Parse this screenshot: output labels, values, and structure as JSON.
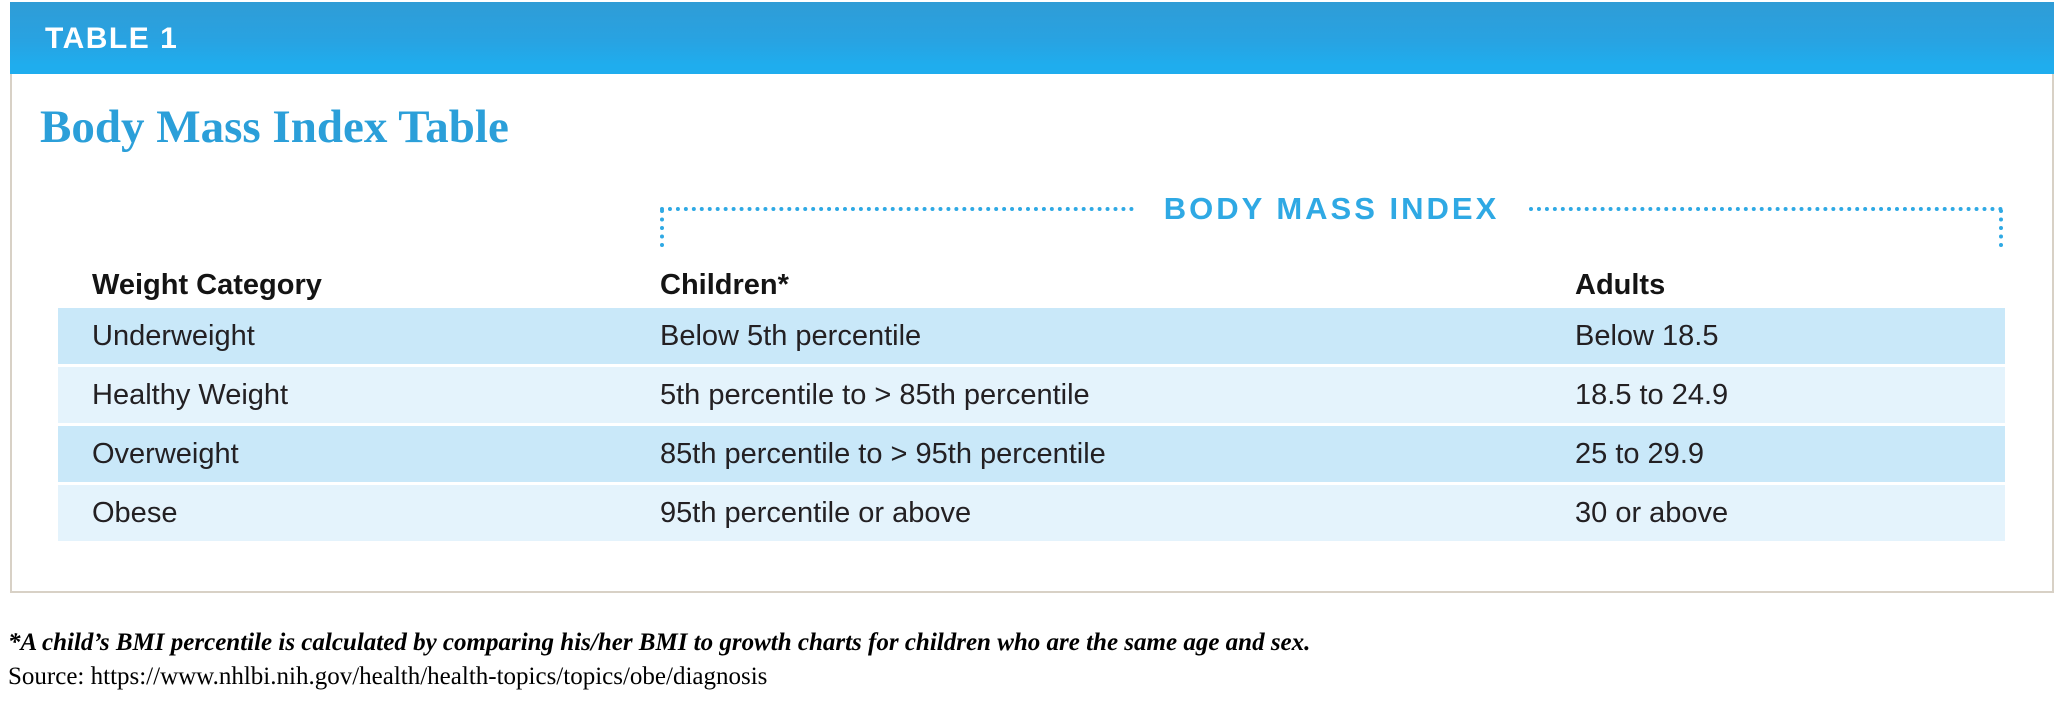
{
  "banner": {
    "label": "TABLE 1"
  },
  "title": "Body Mass Index Table",
  "bracket": {
    "label": "BODY MASS INDEX"
  },
  "table": {
    "columns": [
      "Weight Category",
      "Children*",
      "Adults"
    ],
    "rows": [
      [
        "Underweight",
        "Below 5th percentile",
        "Below 18.5"
      ],
      [
        "Healthy Weight",
        "5th percentile to > 85th percentile",
        "18.5 to 24.9"
      ],
      [
        "Overweight",
        "85th percentile to > 95th percentile",
        "25 to 29.9"
      ],
      [
        "Obese",
        "95th percentile or above",
        "30 or above"
      ]
    ]
  },
  "footnote": "*A child’s BMI percentile is calculated by comparing his/her BMI to growth charts for children who are the same age and sex.",
  "source": "Source: https://www.nhlbi.nih.gov/health/health-topics/topics/obe/diagnosis",
  "chart_data": {
    "type": "table",
    "title": "Body Mass Index Table",
    "group_header": "BODY MASS INDEX",
    "columns": [
      "Weight Category",
      "Children*",
      "Adults"
    ],
    "rows": [
      {
        "weight_category": "Underweight",
        "children": "Below 5th percentile",
        "adults": "Below 18.5"
      },
      {
        "weight_category": "Healthy Weight",
        "children": "5th percentile to > 85th percentile",
        "adults": "18.5 to 24.9"
      },
      {
        "weight_category": "Overweight",
        "children": "85th percentile to > 95th percentile",
        "adults": "25 to 29.9"
      },
      {
        "weight_category": "Obese",
        "children": "95th percentile or above",
        "adults": "30 or above"
      }
    ]
  },
  "colors": {
    "accent_blue": "#2fa9e4",
    "title_blue": "#2b9fd9",
    "banner_gradient_top": "#2f9cd6",
    "banner_gradient_bottom": "#1fadee",
    "row_dark": "#c9e8f9",
    "row_light": "#e4f3fc",
    "panel_border": "#d8d1c6",
    "text": "#232023"
  }
}
